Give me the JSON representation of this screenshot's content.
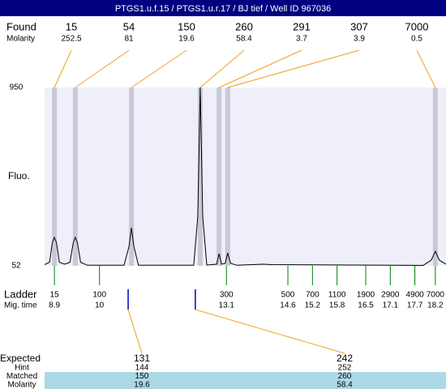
{
  "header": {
    "title": "PTGS1.u.f.15 / PTGS1.u.r.17 / BJ tief / Well ID 967036"
  },
  "chart_data": {
    "type": "line",
    "y_label": "Fluo.",
    "x": [
      8.66,
      8.78,
      8.85,
      8.9,
      8.95,
      9.02,
      9.15,
      9.28,
      9.36,
      9.41,
      9.46,
      9.54,
      9.7,
      10.6,
      10.72,
      10.78,
      10.84,
      10.95,
      12.3,
      12.4,
      12.46,
      12.52,
      12.62,
      12.86,
      12.92,
      12.98,
      13.07,
      13.13,
      13.2,
      13.35,
      14.0,
      14.2,
      17.9,
      18.1,
      18.2,
      18.3,
      18.46
    ],
    "values": [
      58,
      70,
      170,
      195,
      170,
      70,
      60,
      70,
      170,
      195,
      170,
      70,
      55,
      55,
      150,
      244,
      150,
      55,
      55,
      300,
      950,
      300,
      56,
      60,
      113,
      60,
      65,
      117,
      65,
      55,
      60,
      58,
      54,
      80,
      125,
      80,
      60
    ],
    "color": "#000000",
    "background": "#efeffa",
    "xlim": [
      8.66,
      18.46
    ],
    "ylim": [
      52,
      950
    ],
    "yticks": [
      52,
      950
    ]
  },
  "found": {
    "title": "Found",
    "subtitle": "Molarity",
    "sizes": [
      15,
      54,
      150,
      260,
      291,
      307,
      7000
    ],
    "molarities": [
      252.5,
      81,
      19.6,
      58.4,
      3.7,
      3.9,
      0.5
    ],
    "mig_times": [
      8.9,
      9.41,
      10.78,
      12.46,
      12.92,
      13.13,
      18.2
    ]
  },
  "ladder": {
    "title": "Ladder",
    "subtitle": "Mig. time",
    "sizes": [
      15,
      100,
      300,
      500,
      700,
      1100,
      1900,
      2900,
      4900,
      7000
    ],
    "mig_times": [
      8.9,
      10,
      13.1,
      14.6,
      15.2,
      15.8,
      16.5,
      17.1,
      17.7,
      18.2
    ]
  },
  "expected": {
    "title": "Expected",
    "sizes": [
      131,
      242
    ],
    "mig_times": [
      10.7,
      12.34
    ],
    "rows": [
      {
        "label": "Hint",
        "values": [
          144,
          252
        ]
      },
      {
        "label": "Matched",
        "values": [
          150,
          260
        ]
      },
      {
        "label": "Molarity",
        "values": [
          19.6,
          58.4
        ]
      }
    ]
  }
}
